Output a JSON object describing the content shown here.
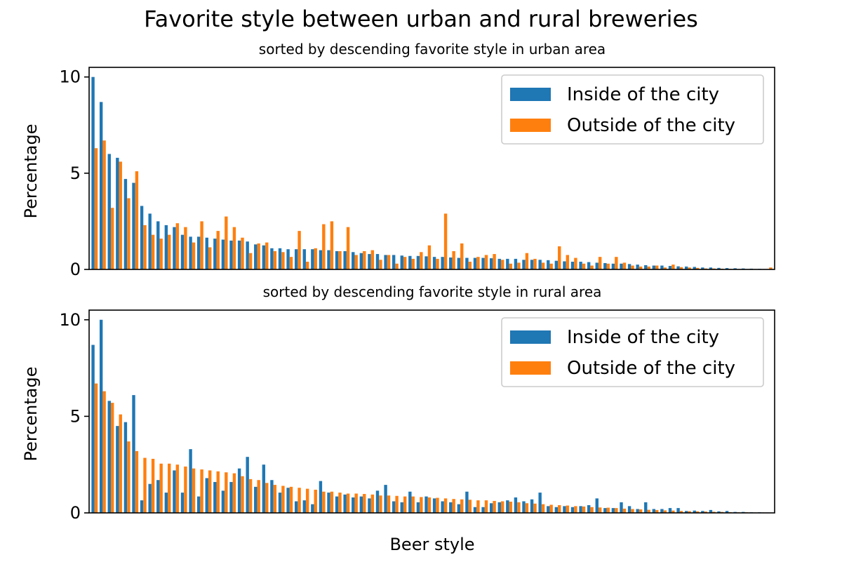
{
  "colors": {
    "inside": "#1f77b4",
    "outside": "#ff7f0e"
  },
  "chart_data": {
    "type": "bar",
    "title": "Favorite style between urban and rural breweries",
    "xlabel": "Beer style",
    "panels": [
      {
        "subtitle": "sorted by descending favorite style in urban area",
        "ylabel": "Percentage",
        "ylim": [
          0,
          10.5
        ],
        "yticks": [
          0,
          5,
          10
        ],
        "legend_position": "top-right",
        "series": [
          {
            "name": "Inside of the city",
            "values": [
              10.0,
              8.7,
              6.0,
              5.8,
              4.7,
              4.5,
              3.3,
              2.9,
              2.5,
              2.3,
              2.2,
              1.8,
              1.7,
              1.7,
              1.65,
              1.6,
              1.55,
              1.5,
              1.5,
              1.45,
              1.3,
              1.25,
              1.1,
              1.1,
              1.05,
              1.05,
              1.05,
              1.05,
              1.0,
              1.0,
              0.95,
              0.95,
              0.9,
              0.85,
              0.8,
              0.8,
              0.75,
              0.75,
              0.72,
              0.7,
              0.7,
              0.68,
              0.65,
              0.65,
              0.62,
              0.6,
              0.6,
              0.6,
              0.6,
              0.58,
              0.55,
              0.55,
              0.55,
              0.5,
              0.5,
              0.5,
              0.48,
              0.45,
              0.42,
              0.4,
              0.4,
              0.38,
              0.35,
              0.33,
              0.3,
              0.3,
              0.28,
              0.25,
              0.22,
              0.2,
              0.2,
              0.18,
              0.16,
              0.15,
              0.13,
              0.1,
              0.1,
              0.08,
              0.07,
              0.06,
              0.05,
              0.04,
              0.03,
              0.02
            ]
          },
          {
            "name": "Outside of the city",
            "values": [
              6.3,
              6.7,
              3.2,
              5.6,
              3.7,
              5.1,
              2.3,
              1.8,
              1.6,
              1.8,
              2.4,
              2.2,
              1.4,
              2.5,
              1.15,
              2.0,
              2.75,
              2.2,
              1.65,
              0.85,
              1.35,
              1.4,
              0.95,
              0.9,
              0.65,
              2.0,
              0.4,
              1.1,
              2.35,
              2.5,
              0.95,
              2.2,
              0.75,
              0.95,
              1.0,
              0.5,
              0.75,
              0.3,
              0.65,
              0.55,
              0.9,
              1.25,
              0.55,
              2.9,
              0.95,
              1.35,
              0.4,
              0.65,
              0.75,
              0.8,
              0.5,
              0.3,
              0.35,
              0.85,
              0.55,
              0.35,
              0.3,
              1.2,
              0.75,
              0.6,
              0.3,
              0.2,
              0.65,
              0.3,
              0.65,
              0.35,
              0.2,
              0.15,
              0.15,
              0.2,
              0.1,
              0.25,
              0.12,
              0.1,
              0.08,
              0.05,
              0.05,
              0.04,
              0.03,
              0.02,
              0.02,
              0.02,
              0.01,
              0.1
            ]
          }
        ]
      },
      {
        "subtitle": "sorted by descending favorite style in rural area",
        "ylabel": "Percentage",
        "ylim": [
          0,
          10.5
        ],
        "yticks": [
          0,
          5,
          10
        ],
        "legend_position": "top-right",
        "series": [
          {
            "name": "Inside of the city",
            "values": [
              8.7,
              10.0,
              5.8,
              4.5,
              4.7,
              6.1,
              0.65,
              1.5,
              1.7,
              1.05,
              2.2,
              1.05,
              3.3,
              0.85,
              1.8,
              1.6,
              1.15,
              1.6,
              2.3,
              2.9,
              1.35,
              2.5,
              1.7,
              1.05,
              1.3,
              0.6,
              0.65,
              0.45,
              1.65,
              1.05,
              0.85,
              0.95,
              0.8,
              0.85,
              0.75,
              1.15,
              1.45,
              0.6,
              0.55,
              1.1,
              0.55,
              0.85,
              0.75,
              0.6,
              0.55,
              0.45,
              1.1,
              0.3,
              0.3,
              0.5,
              0.55,
              0.65,
              0.8,
              0.6,
              0.7,
              1.05,
              0.35,
              0.3,
              0.35,
              0.3,
              0.35,
              0.4,
              0.75,
              0.25,
              0.25,
              0.55,
              0.35,
              0.2,
              0.55,
              0.2,
              0.2,
              0.25,
              0.25,
              0.1,
              0.12,
              0.1,
              0.15,
              0.08,
              0.1,
              0.05,
              0.05,
              0.03,
              0.03,
              0.02
            ]
          },
          {
            "name": "Outside of the city",
            "values": [
              6.7,
              6.3,
              5.7,
              5.1,
              3.7,
              3.2,
              2.85,
              2.8,
              2.55,
              2.55,
              2.5,
              2.4,
              2.3,
              2.25,
              2.2,
              2.15,
              2.1,
              2.05,
              1.9,
              1.75,
              1.7,
              1.55,
              1.45,
              1.4,
              1.35,
              1.3,
              1.25,
              1.2,
              1.1,
              1.1,
              1.05,
              1.0,
              1.0,
              0.98,
              0.95,
              0.9,
              0.9,
              0.88,
              0.85,
              0.85,
              0.82,
              0.8,
              0.78,
              0.75,
              0.72,
              0.7,
              0.68,
              0.65,
              0.65,
              0.62,
              0.6,
              0.58,
              0.55,
              0.5,
              0.48,
              0.45,
              0.42,
              0.4,
              0.38,
              0.35,
              0.33,
              0.3,
              0.28,
              0.27,
              0.25,
              0.22,
              0.2,
              0.18,
              0.16,
              0.15,
              0.13,
              0.12,
              0.1,
              0.09,
              0.08,
              0.07,
              0.06,
              0.05,
              0.04,
              0.03,
              0.03,
              0.02,
              0.02,
              0.01
            ]
          }
        ]
      }
    ]
  }
}
